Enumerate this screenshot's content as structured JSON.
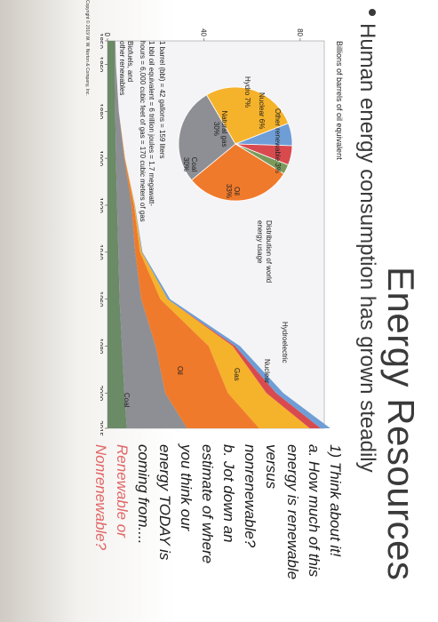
{
  "slide": {
    "title": "Energy Resources",
    "bullet": "Human energy consumption has grown steadily"
  },
  "figure": {
    "ylabel": "Billions of barrels of oil equivalent",
    "notes": {
      "bbl": "1 barrel (bbl) = 42 gallons = 159 liters",
      "equiv1": "1 bbl oil equivalent = 6 trillion joules = 1.7 megawatt-",
      "equiv2": "hours = 6,000 cubic feet of gas = 170 cubic meters of gas",
      "biofuels1": "Biofuels, and",
      "biofuels2": "other renewables"
    },
    "pie": {
      "caption1": "Distribution of world",
      "caption2": "energy usage",
      "labels": {
        "other_renewable": "Other renewable 3%",
        "nuclear": "Nuclear 6%",
        "hydro": "Hydro 7%",
        "natural_gas": "Natural gas",
        "natural_gas_pct": "30%",
        "oil": "Oil",
        "oil_pct": "33%",
        "coal": "Coal",
        "coal_pct": "30%"
      }
    },
    "stack_labels": {
      "hydroelectric": "Hydroelectric",
      "nuclear": "Nuclear",
      "gas": "Gas",
      "oil": "Oil",
      "coal": "Coal"
    },
    "copyright": "Copyright © 2019 W. W. Norton & Company, Inc."
  },
  "questions": {
    "lines": [
      {
        "text": "1) Think about it!",
        "style": "dark"
      },
      {
        "text": "a. How much of this",
        "style": "dark"
      },
      {
        "text": "energy is renewable",
        "style": "dark"
      },
      {
        "text": "versus",
        "style": "dark"
      },
      {
        "text": "nonrenewable?",
        "style": "dark"
      },
      {
        "text": "b. Jot down an",
        "style": "dark"
      },
      {
        "text": "estimate of where",
        "style": "dark"
      },
      {
        "text": "you think our",
        "style": "dark"
      },
      {
        "text": "energy TODAY is",
        "style": "dark"
      },
      {
        "text": "coming from....",
        "style": "dark"
      },
      {
        "text": "Renewable or",
        "style": "red"
      },
      {
        "text": "Nonrenewable?",
        "style": "red"
      }
    ]
  },
  "colors": {
    "coal": "#8d8f95",
    "oil": "#f07a2b",
    "gas": "#f5b22b",
    "nuclear": "#d94a4e",
    "hydro": "#6f9ed6",
    "biofuels": "#6b8a66",
    "other_renewable": "#7a9a5b",
    "question_dark": "#1c1c1c",
    "question_red": "#e06666"
  },
  "chart_data": {
    "type": "area",
    "ylabel": "Billions of barrels of oil equivalent",
    "xlabel": "",
    "x": [
      1850,
      1860,
      1880,
      1900,
      1920,
      1940,
      1960,
      1980,
      2000,
      2015
    ],
    "x_ticks": [
      1850,
      1860,
      1880,
      1900,
      1920,
      1940,
      1960,
      1980,
      2000,
      2015
    ],
    "y_ticks": [
      0,
      40,
      80
    ],
    "ylim": [
      0,
      90
    ],
    "series": [
      {
        "name": "Biofuels, and other renewables",
        "values": [
          3,
          3,
          3.2,
          3.5,
          4,
          4.5,
          5,
          6,
          7,
          8
        ]
      },
      {
        "name": "Coal",
        "values": [
          0.3,
          0.5,
          1.5,
          3.5,
          6,
          7,
          9,
          14,
          17,
          25
        ]
      },
      {
        "name": "Oil",
        "values": [
          0,
          0,
          0,
          0.2,
          1,
          2,
          8,
          22,
          26,
          30
        ]
      },
      {
        "name": "Gas",
        "values": [
          0,
          0,
          0,
          0.1,
          0.3,
          0.7,
          3,
          10,
          16,
          21
        ]
      },
      {
        "name": "Nuclear",
        "values": [
          0,
          0,
          0,
          0,
          0,
          0,
          0,
          1,
          4,
          4.5
        ]
      },
      {
        "name": "Hydroelectric",
        "values": [
          0,
          0,
          0,
          0,
          0.1,
          0.3,
          1,
          2,
          3,
          4
        ]
      }
    ],
    "pie": [
      {
        "name": "Oil",
        "value": 33
      },
      {
        "name": "Coal",
        "value": 30
      },
      {
        "name": "Natural gas",
        "value": 30
      },
      {
        "name": "Hydro",
        "value": 7
      },
      {
        "name": "Nuclear",
        "value": 6
      },
      {
        "name": "Other renewable",
        "value": 3
      }
    ]
  }
}
